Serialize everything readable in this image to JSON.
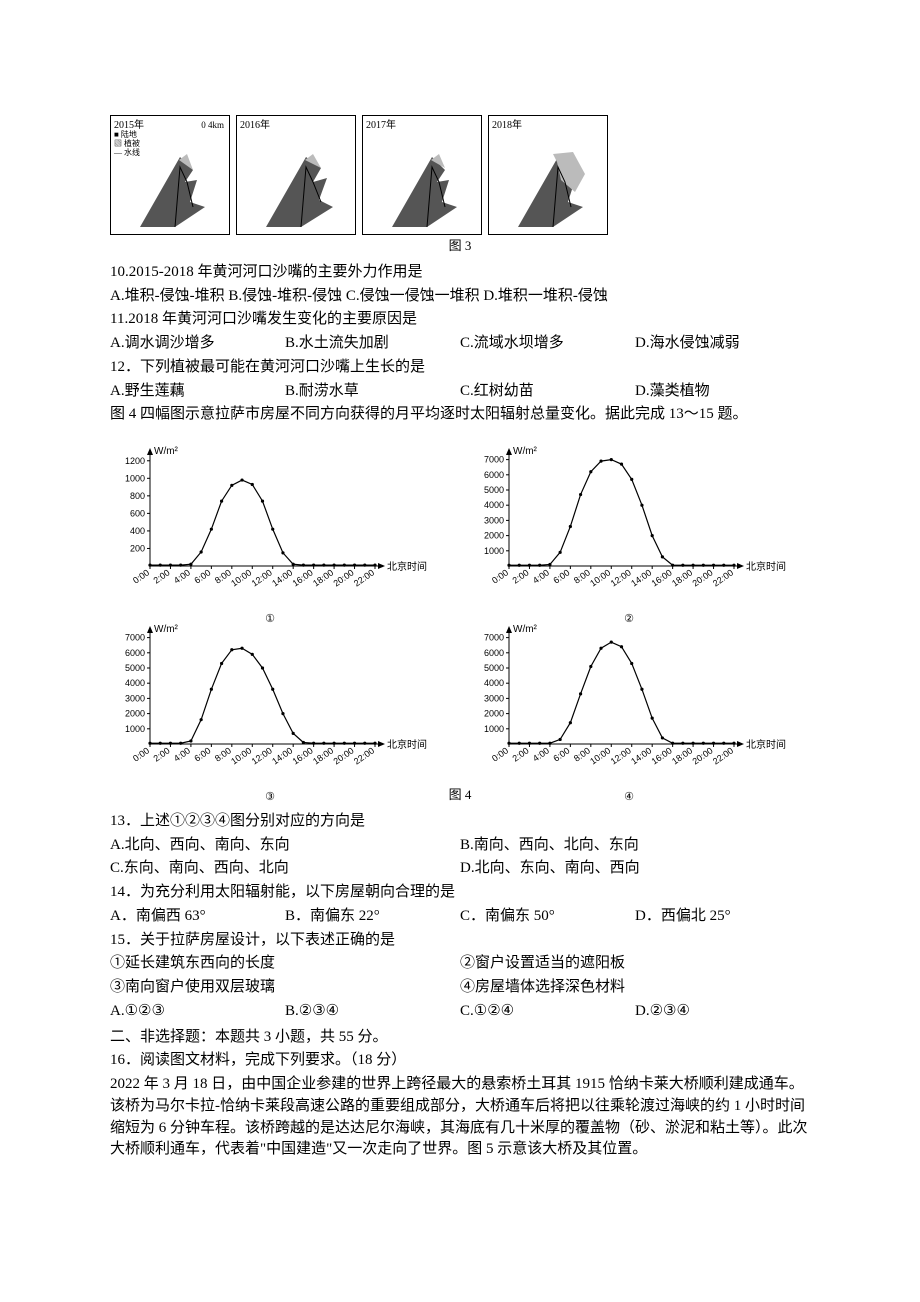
{
  "fig3": {
    "caption": "图 3",
    "panels": [
      {
        "year": "2015年",
        "scale": "0    4km",
        "legend": [
          "陆地",
          "植被",
          "水线"
        ]
      },
      {
        "year": "2016年"
      },
      {
        "year": "2017年"
      },
      {
        "year": "2018年"
      }
    ]
  },
  "q10": {
    "stem": "10.2015-2018 年黄河河口沙嘴的主要外力作用是",
    "opts": "A.堆积-侵蚀-堆积  B.侵蚀-堆积-侵蚀  C.侵蚀一侵蚀一堆积 D.堆积一堆积-侵蚀"
  },
  "q11": {
    "stem": "11.2018 年黄河河口沙嘴发生变化的主要原因是",
    "A": "A.调水调沙增多",
    "B": "B.水土流失加剧",
    "C": "C.流域水坝增多",
    "D": "D.海水侵蚀减弱"
  },
  "q12": {
    "stem": "12．下列植被最可能在黄河河口沙嘴上生长的是",
    "A": "A.野生莲藕",
    "B": "B.耐涝水草",
    "C": "C.红树幼苗",
    "D": "D.藻类植物"
  },
  "intro4": "图 4 四幅图示意拉萨市房屋不同方向获得的月平均逐时太阳辐射总量变化。据此完成 13～15 题。",
  "fig4": {
    "caption": "图 4",
    "ylabel": "W/m²",
    "xlabel": "北京时间",
    "xticks": [
      "0:00",
      "2:00",
      "4:00",
      "6:00",
      "8:00",
      "10:00",
      "12:00",
      "14:00",
      "16:00",
      "18:00",
      "20:00",
      "22:00"
    ],
    "subs": [
      "①",
      "②",
      "③",
      "④"
    ],
    "charts": [
      {
        "yticks": [
          200,
          400,
          600,
          800,
          1000,
          1200
        ],
        "ymax": 1300,
        "values": [
          10,
          10,
          10,
          10,
          20,
          160,
          420,
          740,
          920,
          980,
          930,
          740,
          420,
          150,
          20,
          10,
          10,
          10,
          10,
          10,
          10,
          10,
          10
        ]
      },
      {
        "yticks": [
          1000,
          2000,
          3000,
          4000,
          5000,
          6000,
          7000
        ],
        "ymax": 7500,
        "values": [
          50,
          50,
          50,
          50,
          100,
          900,
          2600,
          4700,
          6200,
          6900,
          7000,
          6700,
          5700,
          4000,
          2000,
          600,
          50,
          50,
          50,
          50,
          50,
          50,
          50
        ]
      },
      {
        "yticks": [
          1000,
          2000,
          3000,
          4000,
          5000,
          6000,
          7000
        ],
        "ymax": 7500,
        "values": [
          50,
          50,
          50,
          50,
          200,
          1600,
          3600,
          5300,
          6200,
          6300,
          5900,
          5000,
          3600,
          2000,
          700,
          100,
          50,
          50,
          50,
          50,
          50,
          50,
          50
        ]
      },
      {
        "yticks": [
          1000,
          2000,
          3000,
          4000,
          5000,
          6000,
          7000
        ],
        "ymax": 7500,
        "values": [
          50,
          50,
          50,
          50,
          50,
          300,
          1400,
          3300,
          5100,
          6300,
          6700,
          6400,
          5300,
          3600,
          1700,
          400,
          50,
          50,
          50,
          50,
          50,
          50,
          50
        ]
      }
    ]
  },
  "q13": {
    "stem": "13．上述①②③④图分别对应的方向是",
    "A": "A.北向、西向、南向、东向",
    "B": "B.南向、西向、北向、东向",
    "C": "C.东向、南向、西向、北向",
    "D": "D.北向、东向、南向、西向"
  },
  "q14": {
    "stem": "14．为充分利用太阳辐射能，以下房屋朝向合理的是",
    "A": "A．南偏西 63°",
    "B": "B．南偏东 22°",
    "C": "C．南偏东 50°",
    "D": "D．西偏北 25°"
  },
  "q15": {
    "stem": "15．关于拉萨房屋设计，以下表述正确的是",
    "l1": "①延长建筑东西向的长度",
    "l2": "②窗户设置适当的遮阳板",
    "l3": "③南向窗户使用双层玻璃",
    "l4": "④房屋墙体选择深色材料",
    "A": "A.①②③",
    "B": "B.②③④",
    "C": "C.①②④",
    "D": "D.②③④"
  },
  "part2": {
    "head": "二、非选择题：本题共 3 小题，共 55 分。",
    "q16head": "16．阅读图文材料，完成下列要求。（18 分）",
    "q16body": "2022 年 3 月 18 日，由中国企业参建的世界上跨径最大的悬索桥土耳其 1915 恰纳卡莱大桥顺利建成通车。该桥为马尔卡拉-恰纳卡莱段高速公路的重要组成部分，大桥通车后将把以往乘轮渡过海峡的约 1 小时时间缩短为 6 分钟车程。该桥跨越的是达达尼尔海峡，其海底有几十米厚的覆盖物（砂、淤泥和粘土等）。此次大桥顺利通车，代表着\"中国建造\"又一次走向了世界。图 5 示意该大桥及其位置。"
  }
}
